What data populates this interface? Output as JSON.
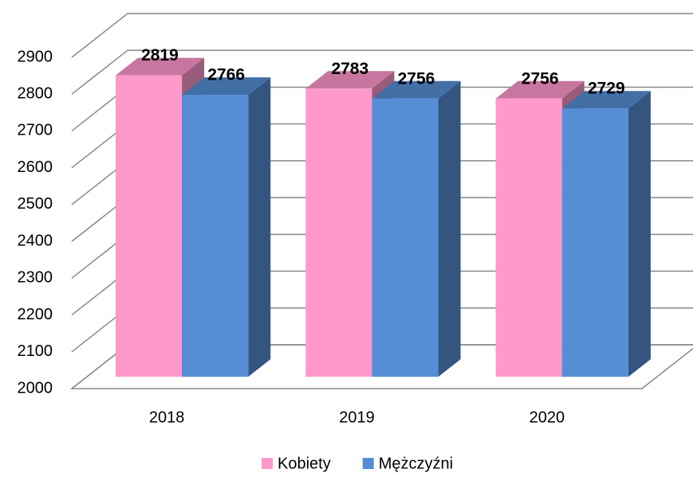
{
  "chart_data": {
    "type": "bar3d",
    "categories": [
      "2018",
      "2019",
      "2020"
    ],
    "series": [
      {
        "name": "Kobiety",
        "color": "#ff99cc",
        "values": [
          2819,
          2783,
          2756
        ]
      },
      {
        "name": "Mężczyźni",
        "color": "#558ed5",
        "values": [
          2766,
          2756,
          2729
        ]
      }
    ],
    "ylim": [
      2000,
      2900
    ],
    "yticks": [
      2000,
      2100,
      2200,
      2300,
      2400,
      2500,
      2600,
      2700,
      2800,
      2900
    ],
    "grid": true,
    "legend": "bottom"
  }
}
